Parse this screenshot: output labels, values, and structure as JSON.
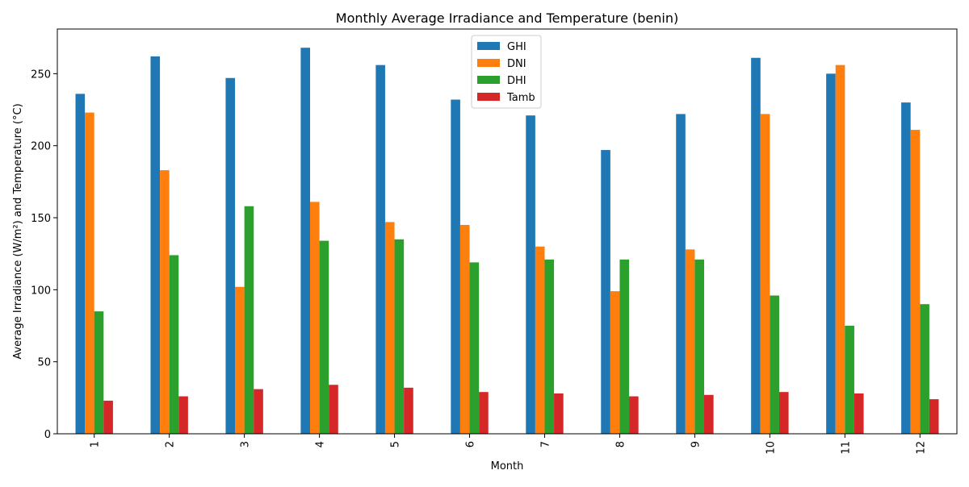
{
  "chart_data": {
    "type": "bar",
    "title": "Monthly Average Irradiance and Temperature (benin)",
    "xlabel": "Month",
    "ylabel": "Average Irradiance (W/m²) and Temperature (°C)",
    "categories": [
      "1",
      "2",
      "3",
      "4",
      "5",
      "6",
      "7",
      "8",
      "9",
      "10",
      "11",
      "12"
    ],
    "ylim": [
      0,
      281
    ],
    "yticks": [
      0,
      50,
      100,
      150,
      200,
      250
    ],
    "grid": false,
    "legend_position": "top-center",
    "series": [
      {
        "name": "GHI",
        "color": "#1f77b4",
        "values": [
          236,
          262,
          247,
          268,
          256,
          232,
          221,
          197,
          222,
          261,
          250,
          230
        ]
      },
      {
        "name": "DNI",
        "color": "#ff7f0e",
        "values": [
          223,
          183,
          102,
          161,
          147,
          145,
          130,
          99,
          128,
          222,
          256,
          211
        ]
      },
      {
        "name": "DHI",
        "color": "#2ca02c",
        "values": [
          85,
          124,
          158,
          134,
          135,
          119,
          121,
          121,
          121,
          96,
          75,
          90
        ]
      },
      {
        "name": "Tamb",
        "color": "#d62728",
        "values": [
          23,
          26,
          31,
          34,
          32,
          29,
          28,
          26,
          27,
          29,
          28,
          24
        ]
      }
    ]
  }
}
